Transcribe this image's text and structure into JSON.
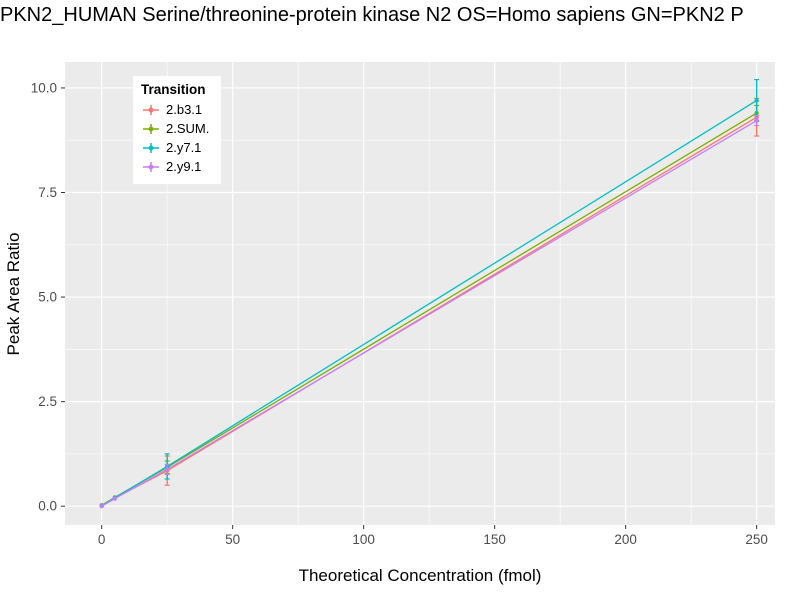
{
  "chart_data": {
    "type": "line",
    "title": "PKN2_HUMAN Serine/threonine-protein kinase N2 OS=Homo sapiens GN=PKN2 P",
    "xlabel": "Theoretical Concentration (fmol)",
    "ylabel": "Peak Area Ratio",
    "legend_title": "Transition",
    "legend_position": "top-left-inside",
    "grid": true,
    "x": [
      0,
      5,
      25,
      250
    ],
    "series": [
      {
        "name": "2.b3.1",
        "color": "#F8766D",
        "values": [
          0.01,
          0.19,
          0.85,
          9.3
        ],
        "errors": [
          0.02,
          0.03,
          0.35,
          0.45
        ]
      },
      {
        "name": "2.SUM.",
        "color": "#7CAE00",
        "values": [
          0.02,
          0.21,
          0.93,
          9.4
        ],
        "errors": [
          0.02,
          0.03,
          0.15,
          0.18
        ]
      },
      {
        "name": "2.y7.1",
        "color": "#00BFC4",
        "values": [
          0.01,
          0.2,
          0.95,
          9.7
        ],
        "errors": [
          0.02,
          0.03,
          0.3,
          0.5
        ]
      },
      {
        "name": "2.y9.1",
        "color": "#C77CFF",
        "values": [
          0.0,
          0.18,
          0.88,
          9.22
        ],
        "errors": [
          0.02,
          0.03,
          0.12,
          0.12
        ]
      }
    ],
    "x_ticks": [
      0,
      50,
      100,
      150,
      200,
      250
    ],
    "x_tick_labels": [
      "0",
      "50",
      "100",
      "150",
      "200",
      "250"
    ],
    "x_minor": [
      25,
      75,
      125,
      175,
      225
    ],
    "y_ticks": [
      0,
      2.5,
      5,
      7.5,
      10
    ],
    "y_tick_labels": [
      "0.0",
      "2.5",
      "5.0",
      "7.5",
      "10.0"
    ],
    "y_minor": [
      1.25,
      3.75,
      6.25,
      8.75
    ],
    "x_domain": [
      -14,
      257
    ],
    "y_domain": [
      -0.45,
      10.62
    ],
    "panel_color": "#EBEBEB",
    "grid_color": "#FFFFFF",
    "tick_label_color": "#4D4D4D",
    "tick_mark_color": "#333333"
  }
}
